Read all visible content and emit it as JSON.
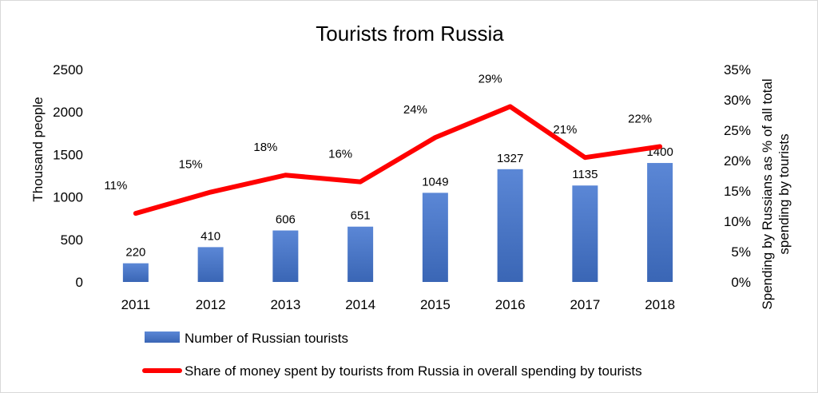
{
  "chart_data": {
    "type": "bar",
    "title": "Tourists from Russia",
    "categories": [
      "2011",
      "2012",
      "2013",
      "2014",
      "2015",
      "2016",
      "2017",
      "2018"
    ],
    "ylabel": "Thousand people",
    "y2label_lines": [
      "Spending by Russians as % of all total",
      "spending by tourists"
    ],
    "ylim": [
      0,
      2500
    ],
    "y2lim": [
      0,
      35
    ],
    "yticks": [
      "0",
      "500",
      "1000",
      "1500",
      "2000",
      "2500"
    ],
    "y2ticks": [
      "0%",
      "5%",
      "10%",
      "15%",
      "20%",
      "25%",
      "30%",
      "35%"
    ],
    "series": [
      {
        "name": "Number of Russian tourists",
        "type": "bar",
        "axis": "left",
        "color": "#4472c4",
        "values": [
          220,
          410,
          606,
          651,
          1049,
          1327,
          1135,
          1400
        ],
        "labels": [
          "220",
          "410",
          "606",
          "651",
          "1049",
          "1327",
          "1135",
          "1400"
        ]
      },
      {
        "name": "Share of money spent by tourists from Russia in overall spending by tourists",
        "type": "line",
        "axis": "right",
        "color": "#ff0000",
        "values": [
          11.3,
          14.8,
          17.6,
          16.5,
          23.8,
          28.9,
          20.5,
          22.3
        ],
        "labels": [
          "11%",
          "15%",
          "18%",
          "16%",
          "24%",
          "29%",
          "21%",
          "22%"
        ]
      }
    ],
    "legend_position": "bottom",
    "grid": false
  }
}
